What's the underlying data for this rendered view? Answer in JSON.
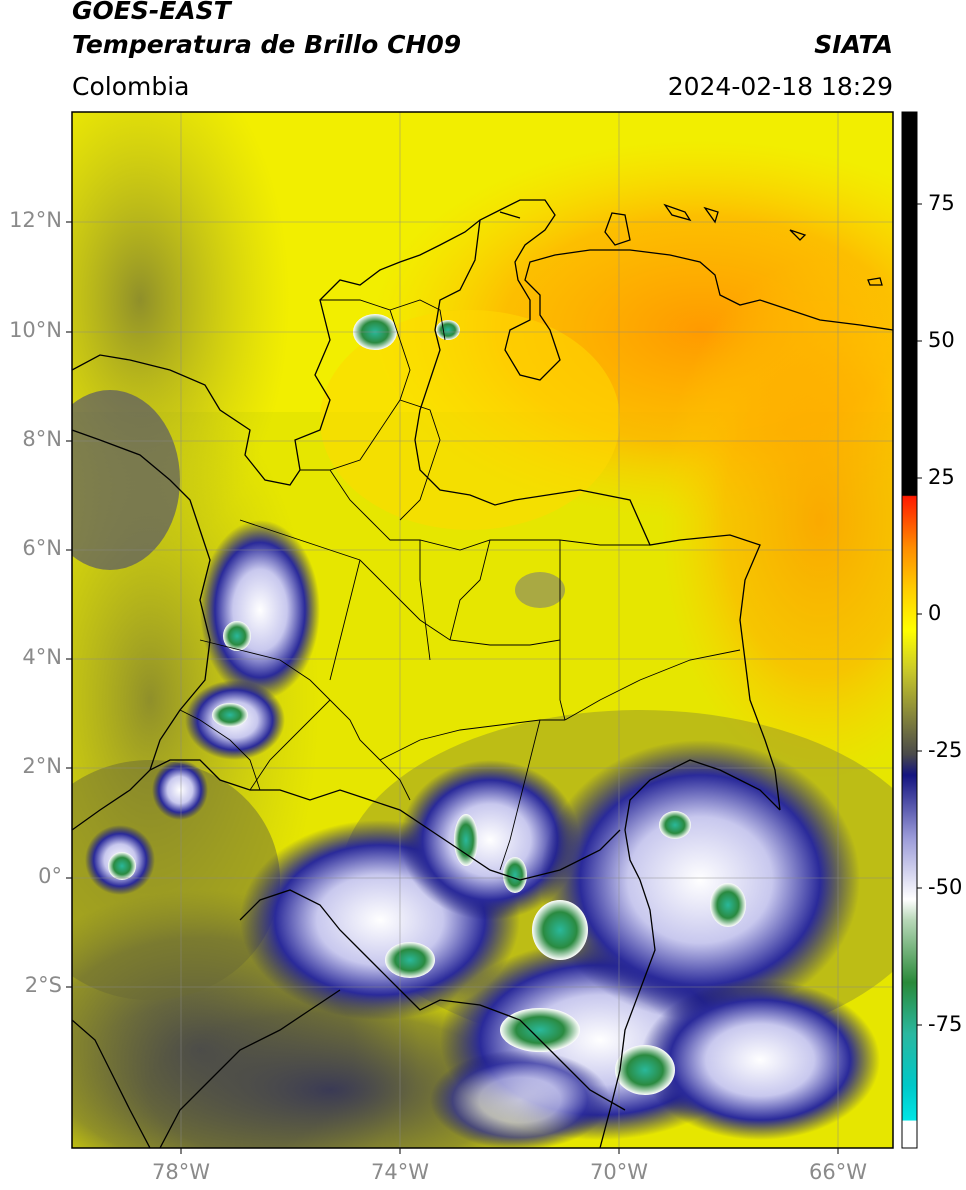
{
  "header": {
    "satellite": "GOES-EAST",
    "product": "Temperatura de Brillo CH09",
    "brand": "SIATA",
    "region": "Colombia",
    "datetime": "2024-02-18 18:29"
  },
  "map": {
    "lat_labels": [
      "12°N",
      "10°N",
      "8°N",
      "6°N",
      "4°N",
      "2°N",
      "0°",
      "2°S"
    ],
    "lon_labels": [
      "78°W",
      "74°W",
      "70°W",
      "66°W"
    ],
    "lat_range": [
      -4.8,
      14.0
    ],
    "lon_range": [
      -80.0,
      -65.0
    ]
  },
  "colorbar": {
    "tick_labels": [
      "75",
      "50",
      "25",
      "0",
      "-25",
      "-50",
      "-75"
    ],
    "colors": {
      "black": "#000000",
      "red": "#ff1a00",
      "orange": "#ff8c00",
      "yellow": "#ffff00",
      "olive": "#a8a82a",
      "gray": "#4a4a4a",
      "navy": "#141480",
      "white": "#ffffff",
      "green": "#2a7a2a",
      "teal": "#2ab8a0",
      "cyan": "#00e5e5"
    }
  }
}
